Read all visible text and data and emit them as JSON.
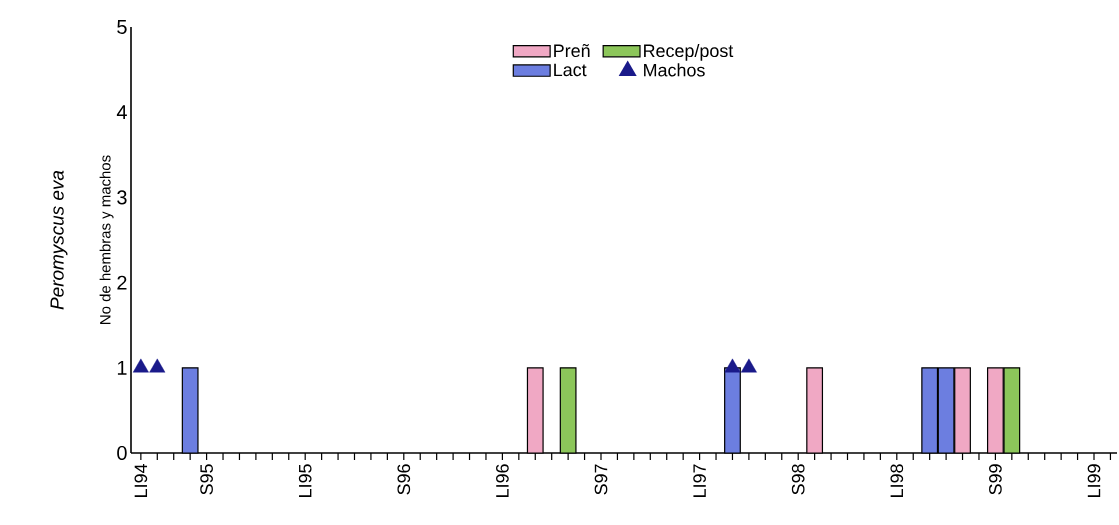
{
  "chart_data": {
    "type": "bar",
    "title": "Peromyscus eva",
    "ylabel": "No de hembras y machos",
    "ylim": [
      0,
      5
    ],
    "yticks": [
      0,
      1,
      2,
      3,
      4,
      5
    ],
    "categories": [
      "LI94",
      null,
      null,
      null,
      "S95",
      null,
      null,
      null,
      null,
      null,
      "LI95",
      null,
      null,
      null,
      null,
      null,
      "S96",
      null,
      null,
      null,
      null,
      null,
      "LI96",
      null,
      null,
      null,
      null,
      null,
      "S97",
      null,
      null,
      null,
      null,
      null,
      "LI97",
      null,
      null,
      null,
      null,
      null,
      "S98",
      null,
      null,
      null,
      null,
      null,
      "LI98",
      null,
      null,
      null,
      null,
      null,
      "S99",
      null,
      null,
      null,
      null,
      null,
      "LI99",
      null
    ],
    "legend": "top",
    "grid": false,
    "series": [
      {
        "name": "Preñ",
        "color": "#f0a8c4",
        "values": [
          null,
          null,
          null,
          null,
          null,
          null,
          null,
          null,
          null,
          null,
          null,
          null,
          null,
          null,
          null,
          null,
          null,
          null,
          null,
          null,
          null,
          null,
          null,
          null,
          1,
          null,
          null,
          null,
          null,
          null,
          null,
          null,
          null,
          null,
          null,
          null,
          null,
          null,
          null,
          null,
          null,
          1,
          null,
          null,
          null,
          null,
          null,
          null,
          null,
          null,
          1,
          null,
          1,
          null,
          null,
          null,
          null,
          null,
          null,
          null
        ]
      },
      {
        "name": "Lact",
        "color": "#6c7ee0",
        "values": [
          null,
          null,
          null,
          1,
          null,
          null,
          null,
          null,
          null,
          null,
          null,
          null,
          null,
          null,
          null,
          null,
          null,
          null,
          null,
          null,
          null,
          null,
          null,
          null,
          null,
          null,
          null,
          null,
          null,
          null,
          null,
          null,
          null,
          null,
          null,
          null,
          1,
          null,
          null,
          null,
          null,
          null,
          null,
          null,
          null,
          null,
          null,
          null,
          1,
          1,
          null,
          null,
          null,
          null,
          null,
          null,
          null,
          null,
          null,
          null
        ]
      },
      {
        "name": "Recep/post",
        "color": "#8cc65a",
        "values": [
          null,
          null,
          null,
          null,
          null,
          null,
          null,
          null,
          null,
          null,
          null,
          null,
          null,
          null,
          null,
          null,
          null,
          null,
          null,
          null,
          null,
          null,
          null,
          null,
          null,
          null,
          1,
          null,
          null,
          null,
          null,
          null,
          null,
          null,
          null,
          null,
          null,
          null,
          null,
          null,
          null,
          null,
          null,
          null,
          null,
          null,
          null,
          null,
          null,
          null,
          null,
          null,
          null,
          1,
          null,
          null,
          null,
          null,
          null,
          null
        ]
      },
      {
        "name": "Machos",
        "type": "scatter",
        "marker": "triangle",
        "color": "#1a1a8a",
        "values": [
          1,
          1,
          null,
          null,
          null,
          null,
          null,
          null,
          null,
          null,
          null,
          null,
          null,
          null,
          null,
          null,
          null,
          null,
          null,
          null,
          null,
          null,
          null,
          null,
          null,
          null,
          null,
          null,
          null,
          null,
          null,
          null,
          null,
          null,
          null,
          null,
          1,
          1,
          null,
          null,
          null,
          null,
          null,
          null,
          null,
          null,
          null,
          null,
          null,
          null,
          null,
          null,
          null,
          null,
          null,
          null,
          null,
          null,
          null,
          null
        ]
      }
    ]
  }
}
